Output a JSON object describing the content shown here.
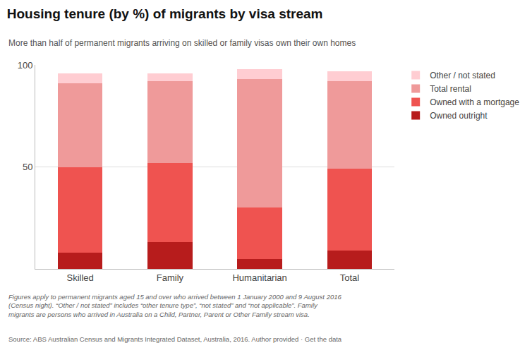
{
  "chart_data": {
    "type": "bar",
    "stacked": true,
    "title": "Housing tenure (by %) of migrants by visa stream",
    "subtitle": "More than half of permanent migrants arriving on skilled or family visas own their own homes",
    "footnote": "Figures apply to permanent migrants aged 15 and over who arrived between 1 January 2000 and 9 August 2016\n(Census night). “Other / not stated” includes “other tenure type”, “not stated” and “not applicable”. Family\nmigrants are persons who arrived in Australia on a Child, Partner, Parent or Other Family stream visa.",
    "source": "Source: ABS Australian Census and Migrants Integrated Dataset, Australia, 2016. Author provided · Get the data",
    "categories": [
      "Skilled",
      "Family",
      "Humanitarian",
      "Total"
    ],
    "series": [
      {
        "name": "Owned outright",
        "color": "#b71c1c",
        "values": [
          8,
          13,
          5,
          9
        ]
      },
      {
        "name": "Owned with a mortgage",
        "color": "#ef5350",
        "values": [
          42,
          39,
          25,
          40
        ]
      },
      {
        "name": "Total rental",
        "color": "#ef9a9a",
        "values": [
          41,
          40,
          63,
          43
        ]
      },
      {
        "name": "Other / not stated",
        "color": "#ffcdd2",
        "values": [
          5,
          4,
          5,
          5
        ]
      }
    ],
    "ylim": [
      0,
      100
    ],
    "yticks": [
      50,
      100
    ],
    "grid": true,
    "legend": "right"
  }
}
